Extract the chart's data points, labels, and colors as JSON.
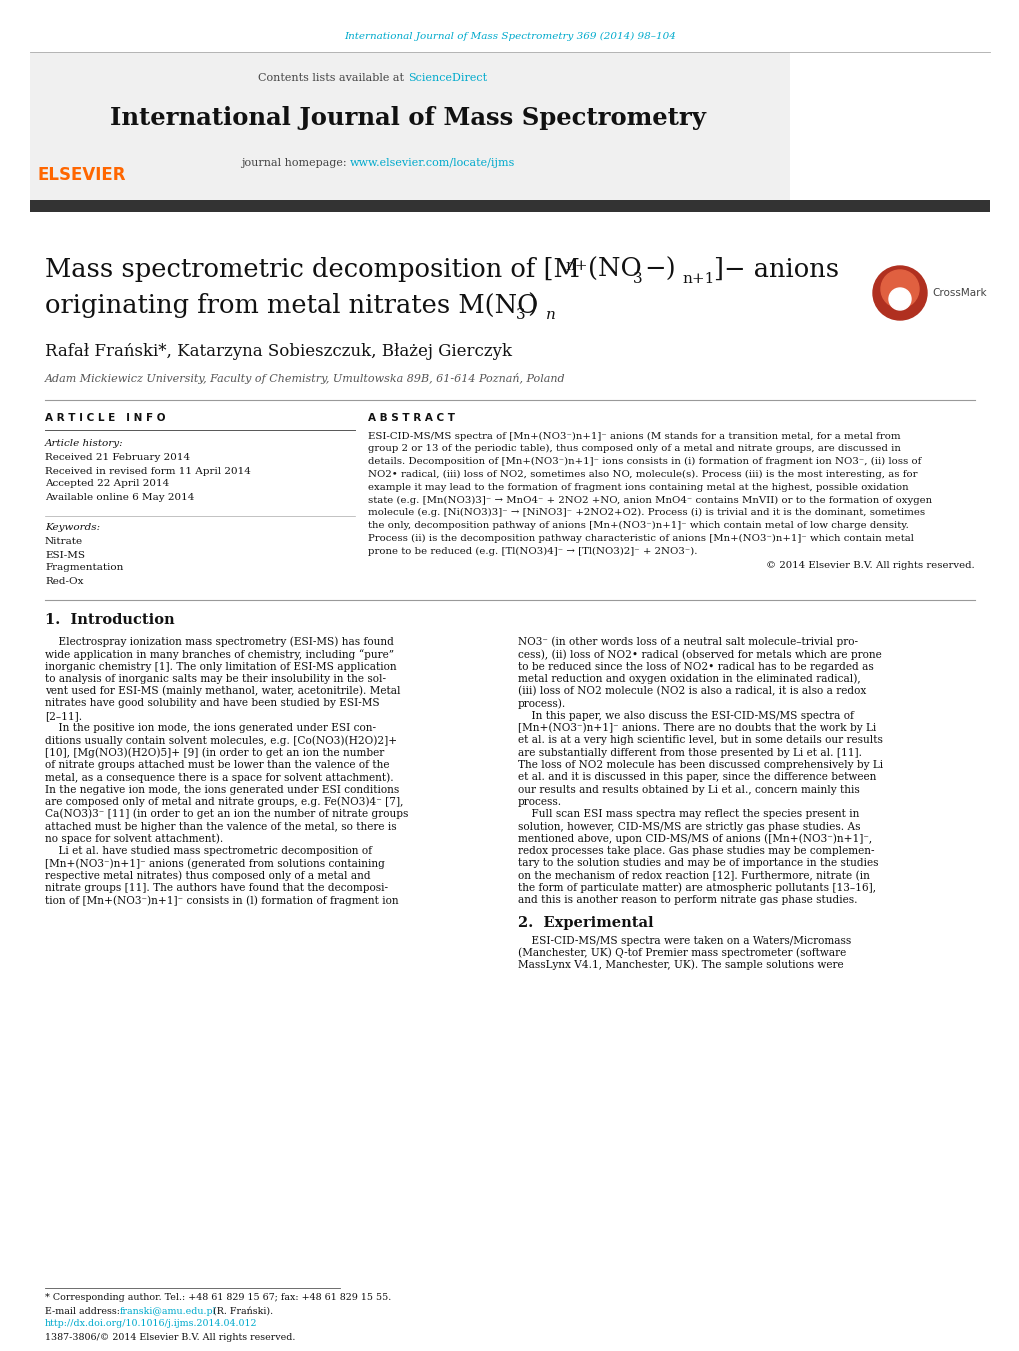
{
  "journal_url_text": "International Journal of Mass Spectrometry 369 (2014) 98–104",
  "journal_url_color": "#00aacc",
  "contents_text": "Contents lists available at ",
  "science_direct_text": "ScienceDirect",
  "science_direct_color": "#00aacc",
  "journal_name": "International Journal of Mass Spectrometry",
  "journal_homepage_text": "journal homepage: ",
  "journal_homepage_url": "www.elsevier.com/locate/ijms",
  "journal_homepage_color": "#00aacc",
  "header_bg_color": "#f0f0f0",
  "dark_bar_color": "#333333",
  "authors": "Rafał Frański*, Katarzyna Sobieszczuk, Błażej Gierczyk",
  "affiliation": "Adam Mickiewicz University, Faculty of Chemistry, Umultowska 89B, 61-614 Poznań, Poland",
  "article_info_label": "A R T I C L E   I N F O",
  "abstract_label": "A B S T R A C T",
  "article_history_label": "Article history:",
  "received_text": "Received 21 February 2014",
  "revised_text": "Received in revised form 11 April 2014",
  "accepted_text": "Accepted 22 April 2014",
  "online_text": "Available online 6 May 2014",
  "keywords_label": "Keywords:",
  "keywords": [
    "Nitrate",
    "ESI-MS",
    "Fragmentation",
    "Red-Ox"
  ],
  "copyright_text": "© 2014 Elsevier B.V. All rights reserved.",
  "intro_heading": "1.  Introduction",
  "section2_heading": "2.  Experimental",
  "footnote_star": "* Corresponding author. Tel.: +48 61 829 15 67; fax: +48 61 829 15 55.",
  "footnote_email_label": "E-mail address: ",
  "footnote_email": "franski@amu.edu.pl",
  "footnote_email_suffix": " (R. Frański).",
  "footnote_doi": "http://dx.doi.org/10.1016/j.ijms.2014.04.012",
  "footnote_issn": "1387-3806/© 2014 Elsevier B.V. All rights reserved.",
  "bg_color": "#ffffff",
  "text_color": "#000000",
  "link_color": "#00aacc",
  "abstract_lines": [
    "ESI-CID-MS/MS spectra of [Mn+(NO3⁻)n+1]⁻ anions (M stands for a transition metal, for a metal from",
    "group 2 or 13 of the periodic table), thus composed only of a metal and nitrate groups, are discussed in",
    "details. Decomposition of [Mn+(NO3⁻)n+1]⁻ ions consists in (i) formation of fragment ion NO3⁻, (ii) loss of",
    "NO2• radical, (iii) loss of NO2, sometimes also NO, molecule(s). Process (iii) is the most interesting, as for",
    "example it may lead to the formation of fragment ions containing metal at the highest, possible oxidation",
    "state (e.g. [Mn(NO3)3]⁻ → MnO4⁻ + 2NO2 +NO, anion MnO4⁻ contains MnVII) or to the formation of oxygen",
    "molecule (e.g. [Ni(NO3)3]⁻ → [NiNO3]⁻ +2NO2+O2). Process (i) is trivial and it is the dominant, sometimes",
    "the only, decomposition pathway of anions [Mn+(NO3⁻)n+1]⁻ which contain metal of low charge density.",
    "Process (ii) is the decomposition pathway characteristic of anions [Mn+(NO3⁻)n+1]⁻ which contain metal",
    "prone to be reduced (e.g. [Tl(NO3)4]⁻ → [Tl(NO3)2]⁻ + 2NO3⁻)."
  ],
  "intro_col1": [
    "    Electrospray ionization mass spectrometry (ESI-MS) has found",
    "wide application in many branches of chemistry, including “pure”",
    "inorganic chemistry [1]. The only limitation of ESI-MS application",
    "to analysis of inorganic salts may be their insolubility in the sol-",
    "vent used for ESI-MS (mainly methanol, water, acetonitrile). Metal",
    "nitrates have good solubility and have been studied by ESI-MS",
    "[2–11].",
    "    In the positive ion mode, the ions generated under ESI con-",
    "ditions usually contain solvent molecules, e.g. [Co(NO3)(H2O)2]+",
    "[10], [Mg(NO3)(H2O)5]+ [9] (in order to get an ion the number",
    "of nitrate groups attached must be lower than the valence of the",
    "metal, as a consequence there is a space for solvent attachment).",
    "In the negative ion mode, the ions generated under ESI conditions",
    "are composed only of metal and nitrate groups, e.g. Fe(NO3)4⁻ [7],",
    "Ca(NO3)3⁻ [11] (in order to get an ion the number of nitrate groups",
    "attached must be higher than the valence of the metal, so there is",
    "no space for solvent attachment).",
    "    Li et al. have studied mass spectrometric decomposition of",
    "[Mn+(NO3⁻)n+1]⁻ anions (generated from solutions containing",
    "respective metal nitrates) thus composed only of a metal and",
    "nitrate groups [11]. The authors have found that the decomposi-",
    "tion of [Mn+(NO3⁻)n+1]⁻ consists in (l) formation of fragment ion"
  ],
  "intro_col2": [
    "NO3⁻ (in other words loss of a neutral salt molecule–trivial pro-",
    "cess), (ii) loss of NO2• radical (observed for metals which are prone",
    "to be reduced since the loss of NO2• radical has to be regarded as",
    "metal reduction and oxygen oxidation in the eliminated radical),",
    "(iii) loss of NO2 molecule (NO2 is also a radical, it is also a redox",
    "process).",
    "    In this paper, we also discuss the ESI-CID-MS/MS spectra of",
    "[Mn+(NO3⁻)n+1]⁻ anions. There are no doubts that the work by Li",
    "et al. is at a very high scientific level, but in some details our results",
    "are substantially different from those presented by Li et al. [11].",
    "The loss of NO2 molecule has been discussed comprehensively by Li",
    "et al. and it is discussed in this paper, since the difference between",
    "our results and results obtained by Li et al., concern mainly this",
    "process.",
    "    Full scan ESI mass spectra may reflect the species present in",
    "solution, however, CID-MS/MS are strictly gas phase studies. As",
    "mentioned above, upon CID-MS/MS of anions ([Mn+(NO3⁻)n+1]⁻,",
    "redox processes take place. Gas phase studies may be complemen-",
    "tary to the solution studies and may be of importance in the studies",
    "on the mechanism of redox reaction [12]. Furthermore, nitrate (in",
    "the form of particulate matter) are atmospheric pollutants [13–16],",
    "and this is another reason to perform nitrate gas phase studies."
  ],
  "sec2_lines": [
    "    ESI-CID-MS/MS spectra were taken on a Waters/Micromass",
    "(Manchester, UK) Q-tof Premier mass spectrometer (software",
    "MassLynx V4.1, Manchester, UK). The sample solutions were"
  ]
}
